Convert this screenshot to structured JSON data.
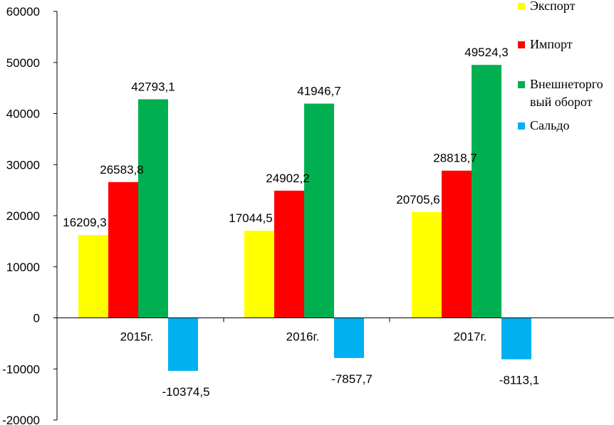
{
  "chart_data": {
    "type": "bar",
    "categories": [
      "2015г.",
      "2016г.",
      "2017г."
    ],
    "series": [
      {
        "name": "Экспорт",
        "color": "#ffff00",
        "values": [
          16209.3,
          17044.5,
          20705.6
        ],
        "labels": [
          "16209,3",
          "17044,5",
          "20705,6"
        ]
      },
      {
        "name": "Импорт",
        "color": "#ff0000",
        "values": [
          26583.8,
          24902.2,
          28818.7
        ],
        "labels": [
          "26583,8",
          "24902,2",
          "28818,7"
        ]
      },
      {
        "name": "Внешнеторговый оборот",
        "legend_lines": [
          "Внешнеторго",
          "вый оборот"
        ],
        "color": "#00b050",
        "values": [
          42793.1,
          41946.7,
          49524.3
        ],
        "labels": [
          "42793,1",
          "41946,7",
          "49524,3"
        ]
      },
      {
        "name": "Сальдо",
        "color": "#00b0f0",
        "values": [
          -10374.5,
          -7857.7,
          -8113.1
        ],
        "labels": [
          "-10374,5",
          "-7857,7",
          "-8113,1"
        ]
      }
    ],
    "ylim": [
      -20000,
      60000
    ],
    "yticks": [
      60000,
      50000,
      40000,
      30000,
      20000,
      10000,
      0,
      -10000,
      -20000
    ],
    "grid": false,
    "legend_position": "top-right"
  }
}
